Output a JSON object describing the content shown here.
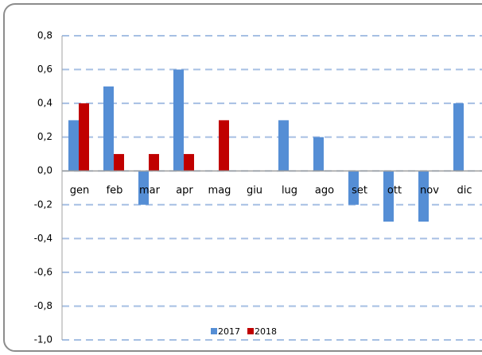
{
  "chart_data": {
    "type": "bar",
    "categories": [
      "gen",
      "feb",
      "mar",
      "apr",
      "mag",
      "giu",
      "lug",
      "ago",
      "set",
      "ott",
      "nov",
      "dic"
    ],
    "series": [
      {
        "name": "2017",
        "color": "#558ed5",
        "values": [
          0.3,
          0.5,
          -0.2,
          0.6,
          0,
          0,
          0.3,
          0.2,
          -0.2,
          -0.3,
          -0.3,
          0.4
        ]
      },
      {
        "name": "2018",
        "color": "#c00000",
        "values": [
          0.4,
          0.1,
          0.1,
          0.1,
          0.3,
          0,
          0,
          0,
          0,
          0,
          0,
          0
        ]
      }
    ],
    "ylim": [
      -1.0,
      0.8
    ],
    "yticks": [
      {
        "value": 0.8,
        "label": "0,8"
      },
      {
        "value": 0.6,
        "label": "0,6"
      },
      {
        "value": 0.4,
        "label": "0,4"
      },
      {
        "value": 0.2,
        "label": "0,2"
      },
      {
        "value": 0.0,
        "label": "0,0"
      },
      {
        "value": -0.2,
        "label": "-0,2"
      },
      {
        "value": -0.4,
        "label": "-0,4"
      },
      {
        "value": -0.6,
        "label": "-0,6"
      },
      {
        "value": -0.8,
        "label": "-0,8"
      },
      {
        "value": -1.0,
        "label": "-1,0"
      }
    ],
    "grid": true,
    "legend": "bottom"
  }
}
